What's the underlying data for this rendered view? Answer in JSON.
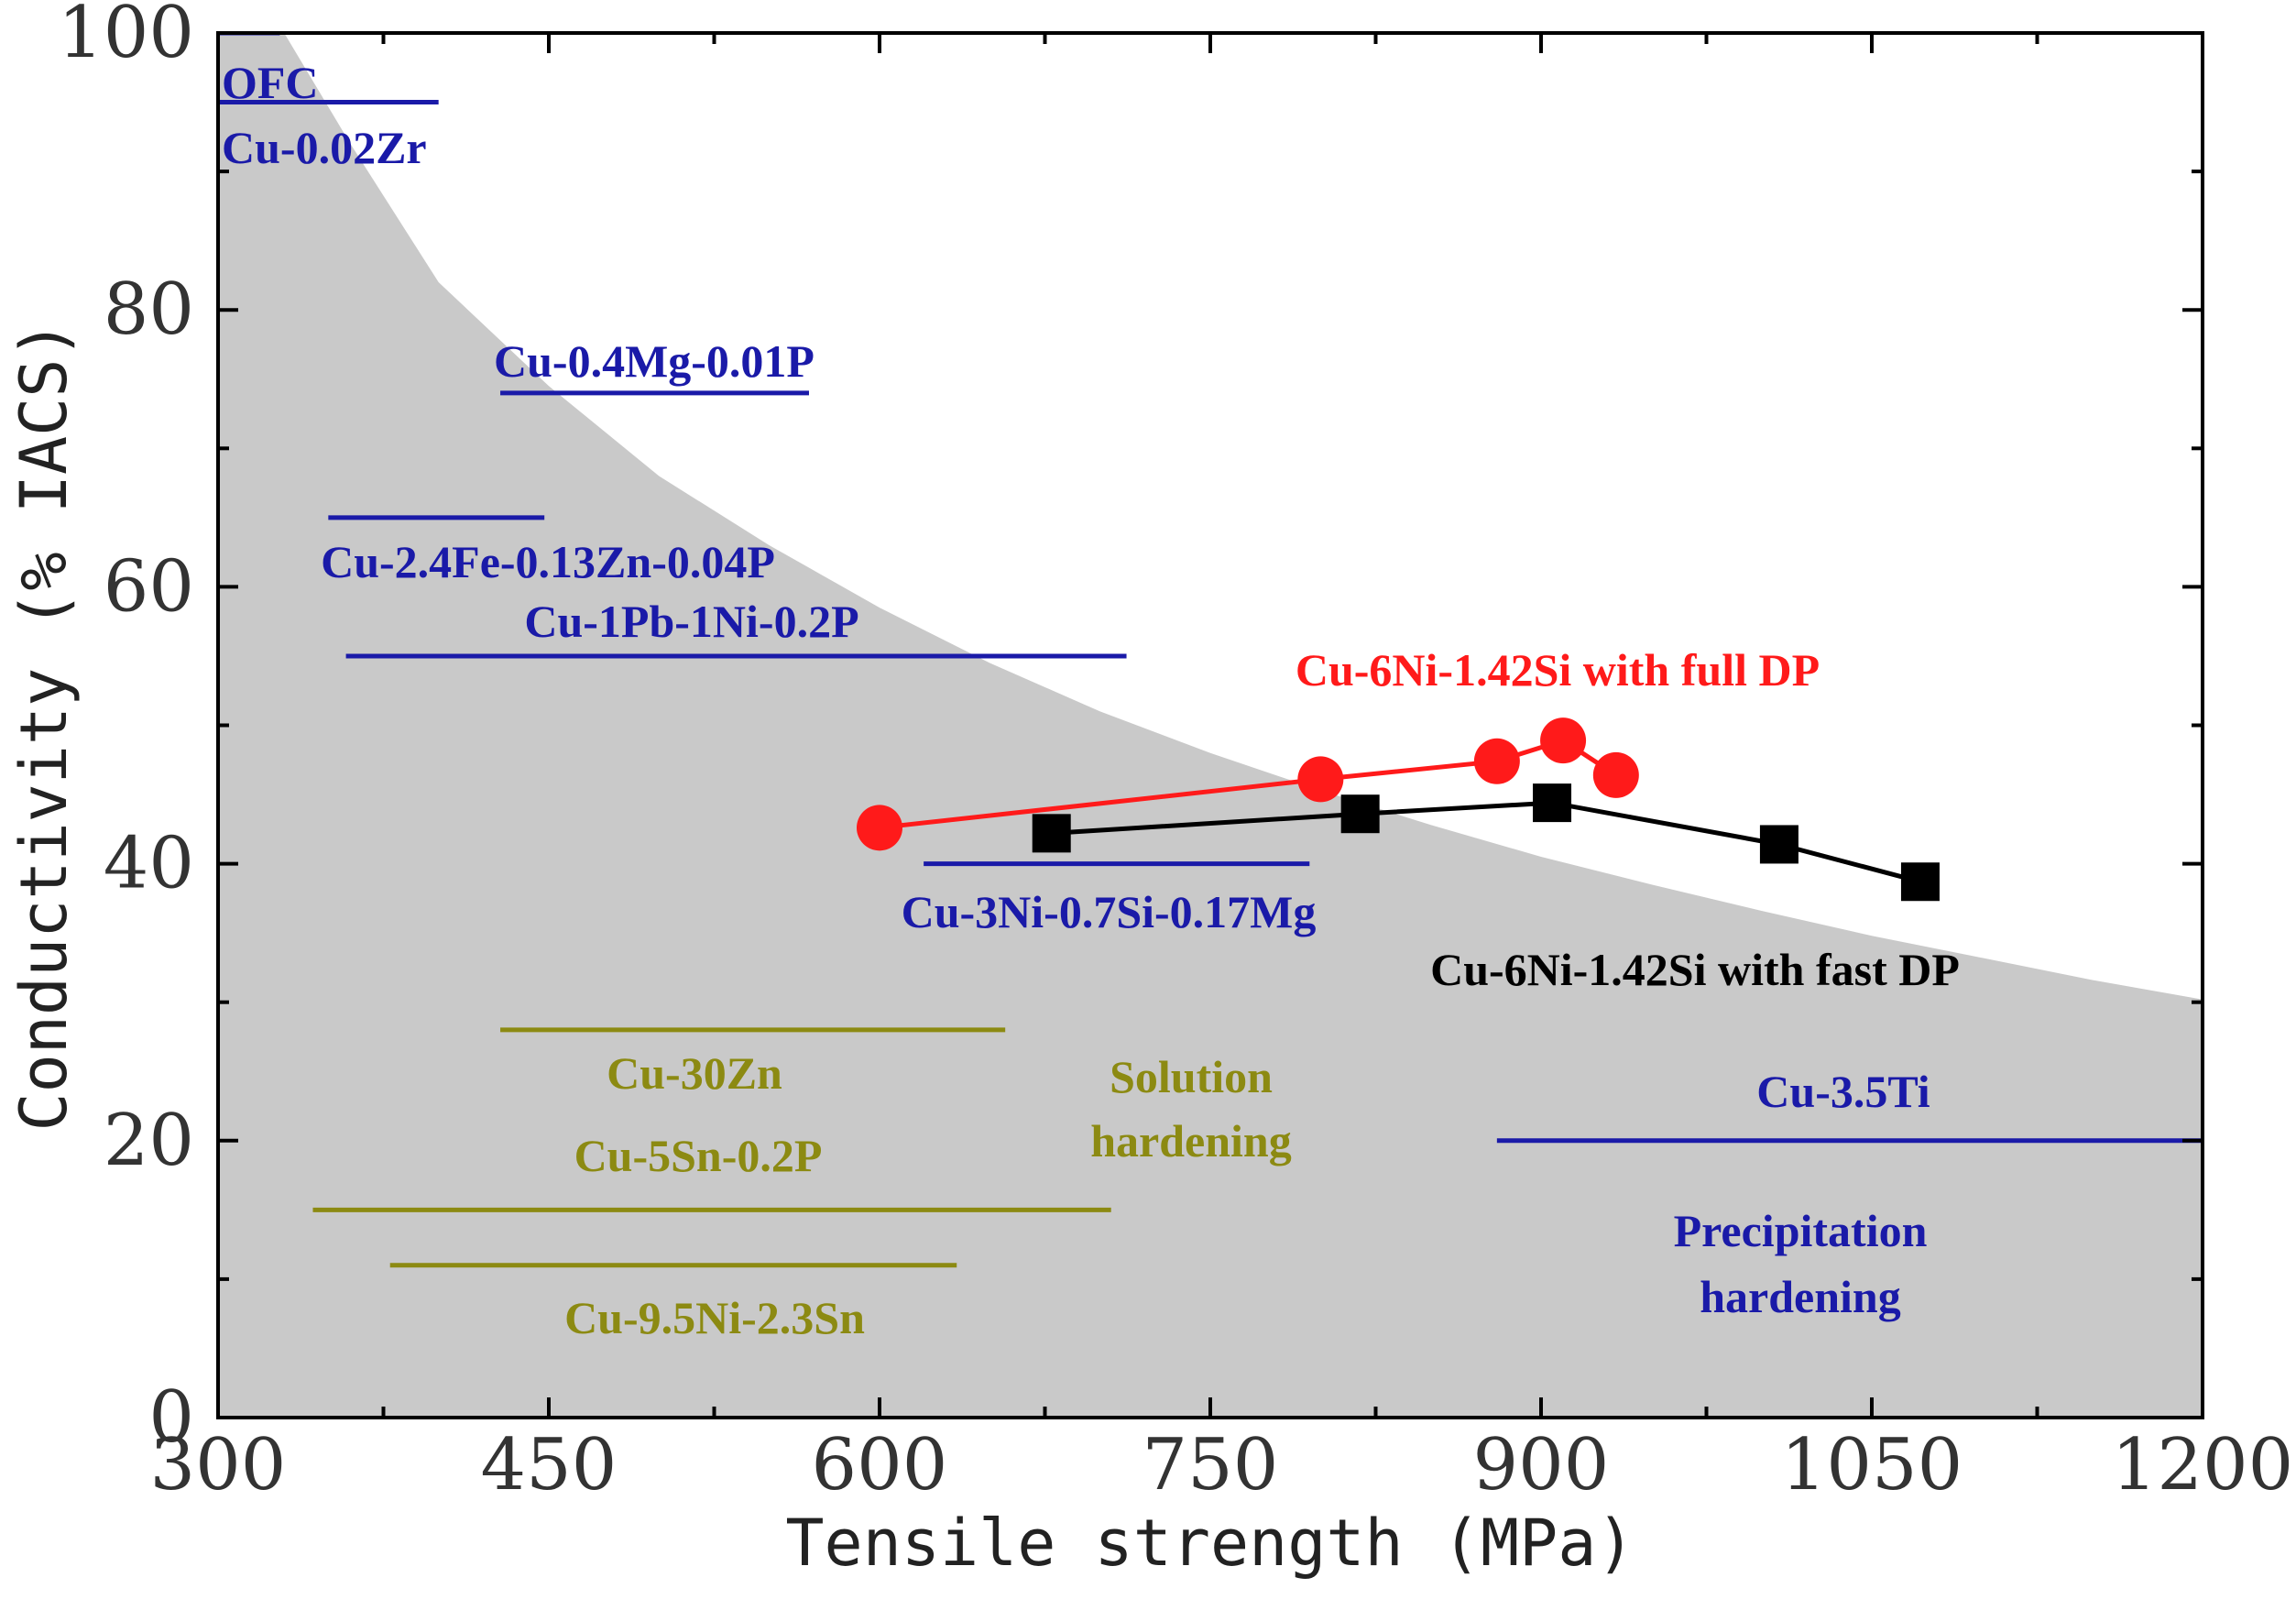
{
  "chart_data": {
    "type": "scatter",
    "xlabel": "Tensile strength (MPa)",
    "ylabel": "Conductivity (% IACS)",
    "xlim": [
      300,
      1200
    ],
    "ylim": [
      0,
      100
    ],
    "xticks": [
      300,
      450,
      600,
      750,
      900,
      1050,
      1200
    ],
    "yticks": [
      0,
      20,
      40,
      60,
      80,
      100
    ],
    "boundary_curve": {
      "description": "shaded region under property limit",
      "x": [
        330,
        360,
        400,
        450,
        500,
        550,
        600,
        650,
        700,
        750,
        800,
        850,
        900,
        950,
        1000,
        1050,
        1100,
        1150,
        1200
      ],
      "y": [
        100,
        92,
        82,
        74.5,
        68,
        63,
        58.5,
        54.5,
        51,
        48,
        45.3,
        42.8,
        40.5,
        38.5,
        36.6,
        34.8,
        33.2,
        31.6,
        30.2
      ]
    },
    "ranges": [
      {
        "name": "OFC",
        "x": [
          300,
          328
        ],
        "y": 100,
        "group": "blue"
      },
      {
        "name": "Cu-0.02Zr",
        "x": [
          300,
          400
        ],
        "y": 95,
        "group": "blue"
      },
      {
        "name": "Cu-0.4Mg-0.01P",
        "x": [
          428,
          568
        ],
        "y": 74,
        "group": "blue"
      },
      {
        "name": "Cu-2.4Fe-0.13Zn-0.04P",
        "x": [
          350,
          448
        ],
        "y": 65,
        "group": "blue"
      },
      {
        "name": "Cu-1Pb-1Ni-0.2P",
        "x": [
          358,
          712
        ],
        "y": 55,
        "group": "blue"
      },
      {
        "name": "Cu-3Ni-0.7Si-0.17Mg",
        "x": [
          620,
          795
        ],
        "y": 40,
        "group": "blue"
      },
      {
        "name": "Cu-3.5Ti",
        "x": [
          880,
          1200
        ],
        "y": 20,
        "group": "blue"
      },
      {
        "name": "Cu-30Zn",
        "x": [
          428,
          657
        ],
        "y": 28,
        "group": "olive"
      },
      {
        "name": "Cu-5Sn-0.2P",
        "x": [
          343,
          705
        ],
        "y": 15,
        "group": "olive"
      },
      {
        "name": "Cu-9.5Ni-2.3Sn",
        "x": [
          378,
          635
        ],
        "y": 11,
        "group": "olive"
      }
    ],
    "series": [
      {
        "name": "Cu-6Ni-1.42Si with full DP",
        "color": "#ff0000",
        "marker": "circle",
        "x": [
          600,
          800,
          880,
          910,
          934
        ],
        "y": [
          42.6,
          46.1,
          47.4,
          48.9,
          46.4
        ]
      },
      {
        "name": "Cu-6Ni-1.42Si with fast DP",
        "color": "#000000",
        "marker": "square",
        "x": [
          678,
          818,
          905,
          1008,
          1072
        ],
        "y": [
          42.2,
          43.6,
          44.4,
          41.4,
          38.7
        ]
      }
    ],
    "annotations": [
      {
        "text": "Solution",
        "x": 790,
        "y": 24.5
      },
      {
        "text": "hardening",
        "x": 790,
        "y": 19.8
      },
      {
        "text": "Precipitation",
        "x": 1015,
        "y": 13.2
      },
      {
        "text": "hardening",
        "x": 1015,
        "y": 8.5
      }
    ]
  },
  "colors": {
    "blue": "#1a1aa8",
    "olive": "#8c8a12",
    "shade": "#c9c9c9",
    "red": "#ff1a1a",
    "black": "#000000"
  }
}
